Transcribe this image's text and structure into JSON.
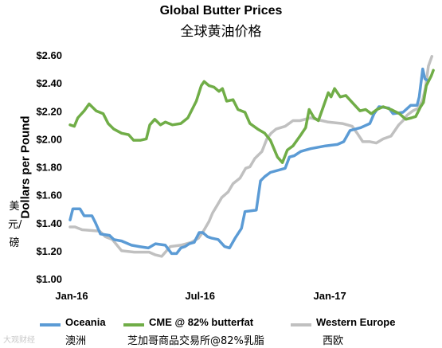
{
  "title": "Global Butter Prices",
  "subtitle": "全球黄油价格",
  "ylabel": "Dollars per Pound",
  "ylabel_zh": "美元/磅",
  "watermark": "大观财经",
  "colors": {
    "oceania": "#5b9bd5",
    "cme": "#70ad47",
    "western_europe": "#c0c0c0"
  },
  "chart_data": {
    "type": "line",
    "title": "Global Butter Prices",
    "subtitle": "全球黄油价格",
    "xlabel": "",
    "ylabel": "Dollars per Pound",
    "ylim": [
      1.0,
      2.6
    ],
    "yticks": [
      "$1.00",
      "$1.20",
      "$1.40",
      "$1.60",
      "$1.80",
      "$2.00",
      "$2.20",
      "$2.40",
      "$2.60"
    ],
    "ytick_values": [
      1.0,
      1.2,
      1.4,
      1.6,
      1.8,
      2.0,
      2.2,
      2.4,
      2.6
    ],
    "x_range": [
      "2016-01-01",
      "2017-05-31"
    ],
    "xticks": [
      {
        "label": "Jan-16",
        "date": "2016-01-01"
      },
      {
        "label": "Jul-16",
        "date": "2016-07-01"
      },
      {
        "label": "Jan-17",
        "date": "2017-01-01"
      }
    ],
    "grid": false,
    "legend_position": "bottom",
    "series": [
      {
        "name": "Oceania",
        "name_zh": "澳洲",
        "color": "#5b9bd5",
        "points": [
          [
            "2016-01-01",
            1.42
          ],
          [
            "2016-01-05",
            1.5
          ],
          [
            "2016-01-15",
            1.5
          ],
          [
            "2016-01-21",
            1.45
          ],
          [
            "2016-02-01",
            1.45
          ],
          [
            "2016-02-06",
            1.4
          ],
          [
            "2016-02-13",
            1.32
          ],
          [
            "2016-02-26",
            1.31
          ],
          [
            "2016-03-03",
            1.28
          ],
          [
            "2016-03-14",
            1.27
          ],
          [
            "2016-03-28",
            1.24
          ],
          [
            "2016-04-08",
            1.23
          ],
          [
            "2016-04-21",
            1.22
          ],
          [
            "2016-05-01",
            1.25
          ],
          [
            "2016-05-15",
            1.24
          ],
          [
            "2016-05-24",
            1.18
          ],
          [
            "2016-05-31",
            1.18
          ],
          [
            "2016-06-06",
            1.22
          ],
          [
            "2016-06-12",
            1.23
          ],
          [
            "2016-06-18",
            1.25
          ],
          [
            "2016-06-25",
            1.26
          ],
          [
            "2016-07-02",
            1.33
          ],
          [
            "2016-07-07",
            1.33
          ],
          [
            "2016-07-14",
            1.3
          ],
          [
            "2016-07-20",
            1.29
          ],
          [
            "2016-07-29",
            1.28
          ],
          [
            "2016-08-07",
            1.23
          ],
          [
            "2016-08-14",
            1.22
          ],
          [
            "2016-08-22",
            1.29
          ],
          [
            "2016-08-31",
            1.36
          ],
          [
            "2016-09-05",
            1.48
          ],
          [
            "2016-09-21",
            1.49
          ],
          [
            "2016-09-27",
            1.7
          ],
          [
            "2016-10-03",
            1.73
          ],
          [
            "2016-10-11",
            1.76
          ],
          [
            "2016-11-01",
            1.79
          ],
          [
            "2016-11-07",
            1.87
          ],
          [
            "2016-11-14",
            1.88
          ],
          [
            "2016-11-23",
            1.91
          ],
          [
            "2016-12-07",
            1.93
          ],
          [
            "2016-12-28",
            1.95
          ],
          [
            "2017-01-14",
            1.96
          ],
          [
            "2017-01-23",
            1.98
          ],
          [
            "2017-02-01",
            2.06
          ],
          [
            "2017-02-16",
            2.08
          ],
          [
            "2017-03-01",
            2.11
          ],
          [
            "2017-03-07",
            2.18
          ],
          [
            "2017-03-14",
            2.23
          ],
          [
            "2017-03-28",
            2.22
          ],
          [
            "2017-04-03",
            2.18
          ],
          [
            "2017-04-17",
            2.19
          ],
          [
            "2017-04-28",
            2.24
          ],
          [
            "2017-05-07",
            2.24
          ],
          [
            "2017-05-10",
            2.3
          ],
          [
            "2017-05-15",
            2.5
          ],
          [
            "2017-05-18",
            2.43
          ],
          [
            "2017-05-21",
            2.42
          ]
        ]
      },
      {
        "name": "CME @ 82% butterfat",
        "name_zh": "芝加哥商品交易所@82%乳脂",
        "color": "#70ad47",
        "points": [
          [
            "2016-01-01",
            2.1
          ],
          [
            "2016-01-07",
            2.09
          ],
          [
            "2016-01-12",
            2.15
          ],
          [
            "2016-01-21",
            2.2
          ],
          [
            "2016-01-28",
            2.25
          ],
          [
            "2016-02-07",
            2.2
          ],
          [
            "2016-02-17",
            2.18
          ],
          [
            "2016-02-24",
            2.11
          ],
          [
            "2016-03-03",
            2.07
          ],
          [
            "2016-03-14",
            2.04
          ],
          [
            "2016-03-24",
            2.03
          ],
          [
            "2016-03-31",
            1.99
          ],
          [
            "2016-04-10",
            1.99
          ],
          [
            "2016-04-18",
            2.0
          ],
          [
            "2016-04-23",
            2.1
          ],
          [
            "2016-04-30",
            2.14
          ],
          [
            "2016-05-08",
            2.1
          ],
          [
            "2016-05-15",
            2.12
          ],
          [
            "2016-05-25",
            2.1
          ],
          [
            "2016-06-06",
            2.11
          ],
          [
            "2016-06-16",
            2.15
          ],
          [
            "2016-06-28",
            2.27
          ],
          [
            "2016-07-05",
            2.38
          ],
          [
            "2016-07-09",
            2.41
          ],
          [
            "2016-07-16",
            2.38
          ],
          [
            "2016-07-23",
            2.37
          ],
          [
            "2016-07-30",
            2.34
          ],
          [
            "2016-08-04",
            2.36
          ],
          [
            "2016-08-10",
            2.27
          ],
          [
            "2016-08-19",
            2.28
          ],
          [
            "2016-08-26",
            2.21
          ],
          [
            "2016-09-05",
            2.19
          ],
          [
            "2016-09-12",
            2.11
          ],
          [
            "2016-09-23",
            2.07
          ],
          [
            "2016-10-03",
            2.04
          ],
          [
            "2016-10-11",
            1.99
          ],
          [
            "2016-10-21",
            1.87
          ],
          [
            "2016-10-28",
            1.83
          ],
          [
            "2016-11-04",
            1.92
          ],
          [
            "2016-11-12",
            1.95
          ],
          [
            "2016-11-22",
            2.02
          ],
          [
            "2016-11-30",
            2.08
          ],
          [
            "2016-12-05",
            2.21
          ],
          [
            "2016-12-12",
            2.15
          ],
          [
            "2016-12-18",
            2.13
          ],
          [
            "2016-12-25",
            2.23
          ],
          [
            "2017-01-01",
            2.33
          ],
          [
            "2017-01-05",
            2.3
          ],
          [
            "2017-01-10",
            2.36
          ],
          [
            "2017-01-18",
            2.3
          ],
          [
            "2017-01-26",
            2.31
          ],
          [
            "2017-02-04",
            2.26
          ],
          [
            "2017-02-15",
            2.2
          ],
          [
            "2017-02-23",
            2.21
          ],
          [
            "2017-03-03",
            2.18
          ],
          [
            "2017-03-11",
            2.21
          ],
          [
            "2017-03-20",
            2.23
          ],
          [
            "2017-03-31",
            2.21
          ],
          [
            "2017-04-12",
            2.18
          ],
          [
            "2017-04-21",
            2.14
          ],
          [
            "2017-04-29",
            2.15
          ],
          [
            "2017-05-05",
            2.16
          ],
          [
            "2017-05-12",
            2.23
          ],
          [
            "2017-05-16",
            2.26
          ],
          [
            "2017-05-20",
            2.38
          ],
          [
            "2017-05-24",
            2.42
          ],
          [
            "2017-05-27",
            2.45
          ],
          [
            "2017-05-30",
            2.49
          ]
        ]
      },
      {
        "name": "Western Europe",
        "name_zh": "西欧",
        "color": "#c0c0c0",
        "points": [
          [
            "2016-01-01",
            1.37
          ],
          [
            "2016-01-08",
            1.37
          ],
          [
            "2016-01-18",
            1.35
          ],
          [
            "2016-02-12",
            1.34
          ],
          [
            "2016-02-20",
            1.3
          ],
          [
            "2016-03-01",
            1.28
          ],
          [
            "2016-03-14",
            1.2
          ],
          [
            "2016-04-01",
            1.19
          ],
          [
            "2016-04-22",
            1.19
          ],
          [
            "2016-05-01",
            1.17
          ],
          [
            "2016-05-10",
            1.16
          ],
          [
            "2016-05-22",
            1.23
          ],
          [
            "2016-06-06",
            1.24
          ],
          [
            "2016-06-14",
            1.25
          ],
          [
            "2016-06-21",
            1.26
          ],
          [
            "2016-07-01",
            1.29
          ],
          [
            "2016-07-08",
            1.34
          ],
          [
            "2016-07-16",
            1.41
          ],
          [
            "2016-07-21",
            1.47
          ],
          [
            "2016-07-27",
            1.52
          ],
          [
            "2016-08-03",
            1.58
          ],
          [
            "2016-08-12",
            1.62
          ],
          [
            "2016-08-19",
            1.68
          ],
          [
            "2016-08-29",
            1.72
          ],
          [
            "2016-09-06",
            1.79
          ],
          [
            "2016-09-12",
            1.8
          ],
          [
            "2016-09-19",
            1.86
          ],
          [
            "2016-09-29",
            1.91
          ],
          [
            "2016-10-06",
            2.0
          ],
          [
            "2016-10-12",
            2.04
          ],
          [
            "2016-10-19",
            2.07
          ],
          [
            "2016-11-01",
            2.09
          ],
          [
            "2016-11-12",
            2.13
          ],
          [
            "2016-11-22",
            2.13
          ],
          [
            "2016-12-07",
            2.15
          ],
          [
            "2016-12-23",
            2.13
          ],
          [
            "2017-01-01",
            2.12
          ],
          [
            "2017-01-21",
            2.11
          ],
          [
            "2017-02-04",
            2.09
          ],
          [
            "2017-02-11",
            2.04
          ],
          [
            "2017-02-19",
            1.98
          ],
          [
            "2017-03-01",
            1.98
          ],
          [
            "2017-03-10",
            1.97
          ],
          [
            "2017-03-20",
            2.0
          ],
          [
            "2017-03-31",
            2.02
          ],
          [
            "2017-04-11",
            2.1
          ],
          [
            "2017-04-17",
            2.13
          ],
          [
            "2017-04-23",
            2.17
          ],
          [
            "2017-05-01",
            2.2
          ],
          [
            "2017-05-09",
            2.22
          ],
          [
            "2017-05-15",
            2.28
          ],
          [
            "2017-05-19",
            2.37
          ],
          [
            "2017-05-23",
            2.52
          ],
          [
            "2017-05-28",
            2.59
          ]
        ]
      }
    ]
  }
}
